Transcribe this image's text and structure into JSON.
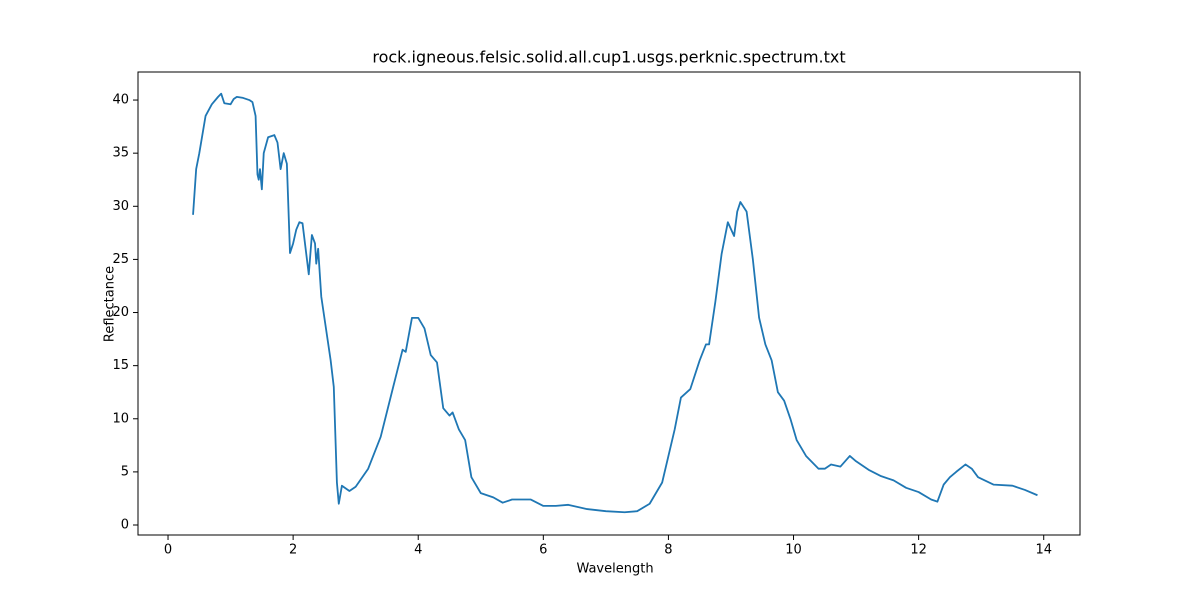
{
  "chart_data": {
    "type": "line",
    "title": "rock.igneous.felsic.solid.all.cup1.usgs.perknic.spectrum.txt",
    "x_label": "Wavelength",
    "y_label": "Reflectance",
    "x": [
      0.4,
      0.45,
      0.5,
      0.6,
      0.7,
      0.8,
      0.85,
      0.9,
      1.0,
      1.05,
      1.1,
      1.2,
      1.3,
      1.35,
      1.4,
      1.43,
      1.45,
      1.47,
      1.5,
      1.53,
      1.6,
      1.7,
      1.75,
      1.8,
      1.85,
      1.9,
      1.95,
      2.0,
      2.05,
      2.1,
      2.15,
      2.2,
      2.25,
      2.3,
      2.35,
      2.37,
      2.4,
      2.45,
      2.5,
      2.55,
      2.6,
      2.65,
      2.7,
      2.73,
      2.78,
      2.9,
      3.0,
      3.2,
      3.4,
      3.6,
      3.75,
      3.8,
      3.9,
      4.0,
      4.1,
      4.2,
      4.3,
      4.4,
      4.5,
      4.55,
      4.65,
      4.75,
      4.85,
      5.0,
      5.2,
      5.35,
      5.5,
      5.8,
      6.0,
      6.2,
      6.4,
      6.7,
      7.0,
      7.3,
      7.5,
      7.7,
      7.9,
      8.1,
      8.2,
      8.35,
      8.5,
      8.6,
      8.65,
      8.75,
      8.85,
      8.95,
      9.05,
      9.1,
      9.15,
      9.25,
      9.35,
      9.45,
      9.55,
      9.65,
      9.75,
      9.85,
      9.95,
      10.05,
      10.2,
      10.4,
      10.5,
      10.6,
      10.75,
      10.9,
      11.0,
      11.2,
      11.4,
      11.6,
      11.8,
      12.0,
      12.2,
      12.3,
      12.4,
      12.5,
      12.6,
      12.75,
      12.85,
      12.95,
      13.2,
      13.5,
      13.7,
      13.9
    ],
    "series": [
      {
        "color": "#1f77b4",
        "values": [
          29.2,
          33.5,
          35,
          38.5,
          39.6,
          40.3,
          40.6,
          39.7,
          39.6,
          40.1,
          40.3,
          40.2,
          40.0,
          39.8,
          38.5,
          33,
          32.5,
          33.5,
          31.6,
          35,
          36.5,
          36.7,
          36,
          33.5,
          35,
          34,
          25.6,
          26.5,
          27.8,
          28.5,
          28.4,
          26,
          23.6,
          27.3,
          26.5,
          24.6,
          26,
          21.5,
          19.5,
          17.5,
          15.5,
          13,
          4,
          2,
          3.7,
          3.2,
          3.6,
          5.3,
          8.3,
          13,
          16.5,
          16.3,
          19.5,
          19.5,
          18.5,
          16,
          15.3,
          11,
          10.3,
          10.6,
          9,
          8,
          4.5,
          3,
          2.6,
          2.1,
          2.4,
          2.4,
          1.8,
          1.8,
          1.9,
          1.5,
          1.3,
          1.2,
          1.3,
          2,
          4,
          9,
          12,
          12.8,
          15.5,
          17,
          17,
          21,
          25.5,
          28.5,
          27.2,
          29.5,
          30.4,
          29.5,
          25,
          19.5,
          17,
          15.5,
          12.5,
          11.7,
          10,
          8,
          6.5,
          5.3,
          5.3,
          5.7,
          5.5,
          6.5,
          6,
          5.2,
          4.6,
          4.2,
          3.5,
          3.1,
          2.4,
          2.2,
          3.8,
          4.5,
          5,
          5.7,
          5.3,
          4.5,
          3.8,
          3.7,
          3.3,
          2.8
        ]
      }
    ],
    "xlim": [
      -0.48,
      14.58
    ],
    "ylim": [
      -0.94,
      42.64
    ],
    "xticks": [
      0,
      2,
      4,
      6,
      8,
      10,
      12,
      14
    ],
    "yticks": [
      0,
      5,
      10,
      15,
      20,
      25,
      30,
      35,
      40
    ]
  }
}
